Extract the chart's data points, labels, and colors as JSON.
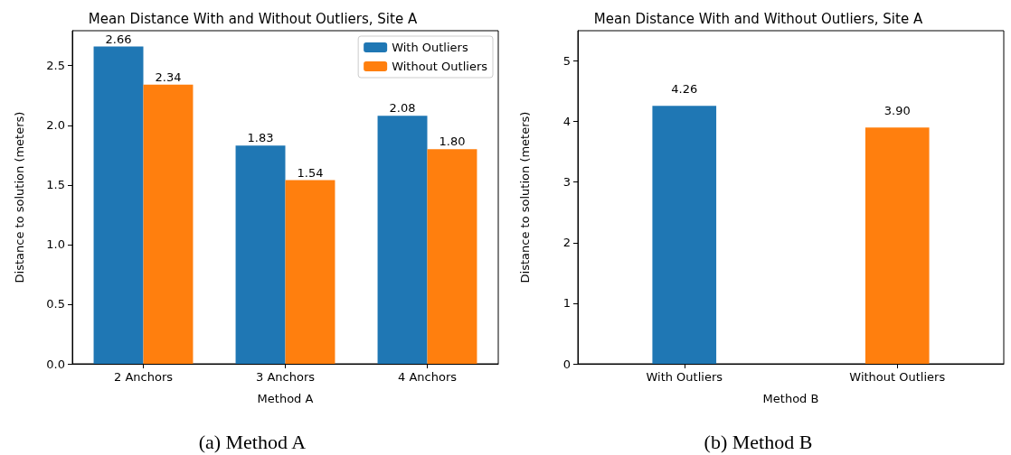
{
  "chart_data": [
    {
      "type": "bar",
      "title": "Mean Distance With and Without Outliers, Site A",
      "xlabel": "Method A",
      "ylabel": "Distance to solution (meters)",
      "categories": [
        "2 Anchors",
        "3 Anchors",
        "4 Anchors"
      ],
      "series": [
        {
          "name": "With Outliers",
          "color": "#1f77b4",
          "values": [
            2.66,
            1.83,
            2.08
          ],
          "value_labels": [
            "2.66",
            "1.83",
            "2.08"
          ]
        },
        {
          "name": "Without Outliers",
          "color": "#ff7f0e",
          "values": [
            2.34,
            1.54,
            1.8
          ],
          "value_labels": [
            "2.34",
            "1.54",
            "1.80"
          ]
        }
      ],
      "ylim": [
        0,
        2.793
      ],
      "yticks": [
        {
          "value": 0,
          "label": "0.0"
        },
        0.5,
        {
          "value": 1,
          "label": "1.0"
        },
        1.5,
        {
          "value": 2,
          "label": "2.0"
        },
        2.5
      ],
      "legend": "top right",
      "grid": false,
      "annotations": [
        "(a) Method A"
      ]
    },
    {
      "type": "bar",
      "title": "Mean Distance With and Without Outliers, Site A",
      "xlabel": "Method B",
      "ylabel": "Distance to solution (meters)",
      "categories": [
        "With Outliers",
        "Without Outliers"
      ],
      "values": [
        4.26,
        3.9
      ],
      "value_labels": [
        "4.26",
        "3.90"
      ],
      "colors": [
        "#1f77b4",
        "#ff7f0e"
      ],
      "ylim": [
        0,
        5.5
      ],
      "yticks": [
        0,
        1,
        2,
        3,
        4,
        5
      ],
      "legend": false,
      "grid": false,
      "annotations": [
        "(b) Method B"
      ]
    }
  ]
}
